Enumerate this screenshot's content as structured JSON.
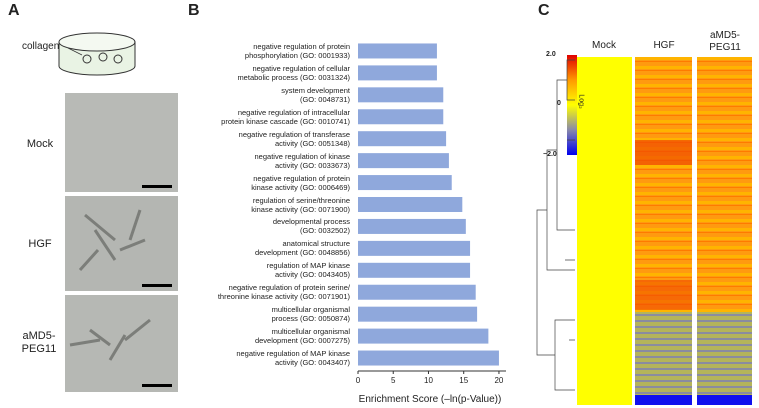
{
  "panel_labels": [
    "A",
    "B",
    "C"
  ],
  "panel_a": {
    "dish_label": "collagen",
    "conditions": [
      "Mock",
      "HGF",
      "aMD5-\nPEG11"
    ]
  },
  "chart_data": {
    "type": "bar",
    "orientation": "horizontal",
    "x_label": "Enrichment Score (–ln(p-Value))",
    "categories": [
      "negative regulation of protein\nphosphorylation (GO: 0001933)",
      "negative regulation of cellular\nmetabolic process (GO: 0031324)",
      "system development\n(GO: 0048731)",
      "negative regulation of intracellular\nprotein kinase cascade (GO: 0010741)",
      "negative regulation of transferase\nactivity (GO: 0051348)",
      "negative regulation of kinase\nactivity (GO: 0033673)",
      "negative regulation of protein\nkinase activity (GO: 0006469)",
      "regulation of serine/threonine\nkinase activity (GO: 0071900)",
      "developmental process\n(GO: 0032502)",
      "anatomical structure\ndevelopment (GO: 0048856)",
      "regulation of MAP kinase\nactivity (GO: 0043405)",
      "negative regulation of protein serine/\nthreonine kinase activity (GO: 0071901)",
      "multicellular organismal\nprocess (GO: 0050874)",
      "multicellular organismal\ndevelopment (GO: 0007275)",
      "negative regulation of MAP kinase\nactivity (GO: 0043407)"
    ],
    "values": [
      11.2,
      11.2,
      12.1,
      12.1,
      12.5,
      12.9,
      13.3,
      14.8,
      15.3,
      15.9,
      15.9,
      16.7,
      16.9,
      18.5,
      20.0
    ],
    "color": "#8fa8dc",
    "xlim": [
      0,
      21
    ],
    "xticks": [
      0,
      5,
      10,
      15,
      20
    ]
  },
  "heatmap": {
    "columns": [
      "Mock",
      "HGF",
      "aMD5-\nPEG11"
    ],
    "scale_title": "Log₂",
    "scale_labels": [
      "2.0",
      "0",
      "−2.0"
    ]
  }
}
